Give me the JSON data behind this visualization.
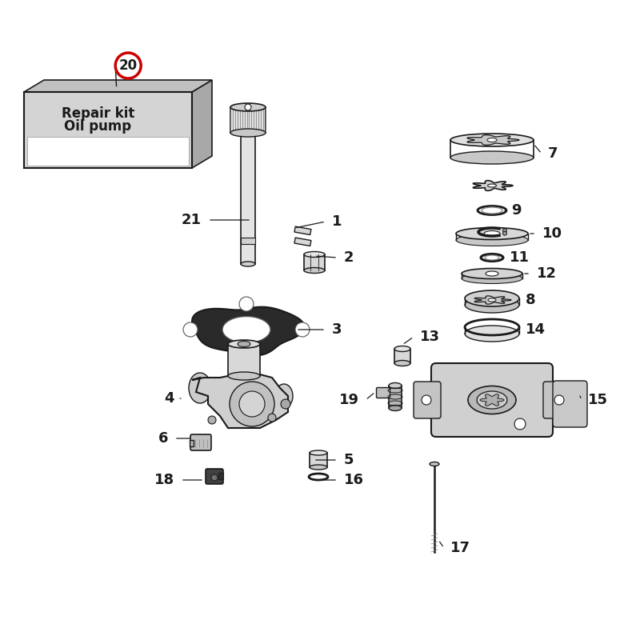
{
  "background_color": "#ffffff",
  "line_color": "#1a1a1a",
  "label_color": "#1a1a1a",
  "label_fontsize": 13,
  "label_fontweight": "bold",
  "box_label_line1": "Repair kit",
  "box_label_line2": "Oil pump"
}
